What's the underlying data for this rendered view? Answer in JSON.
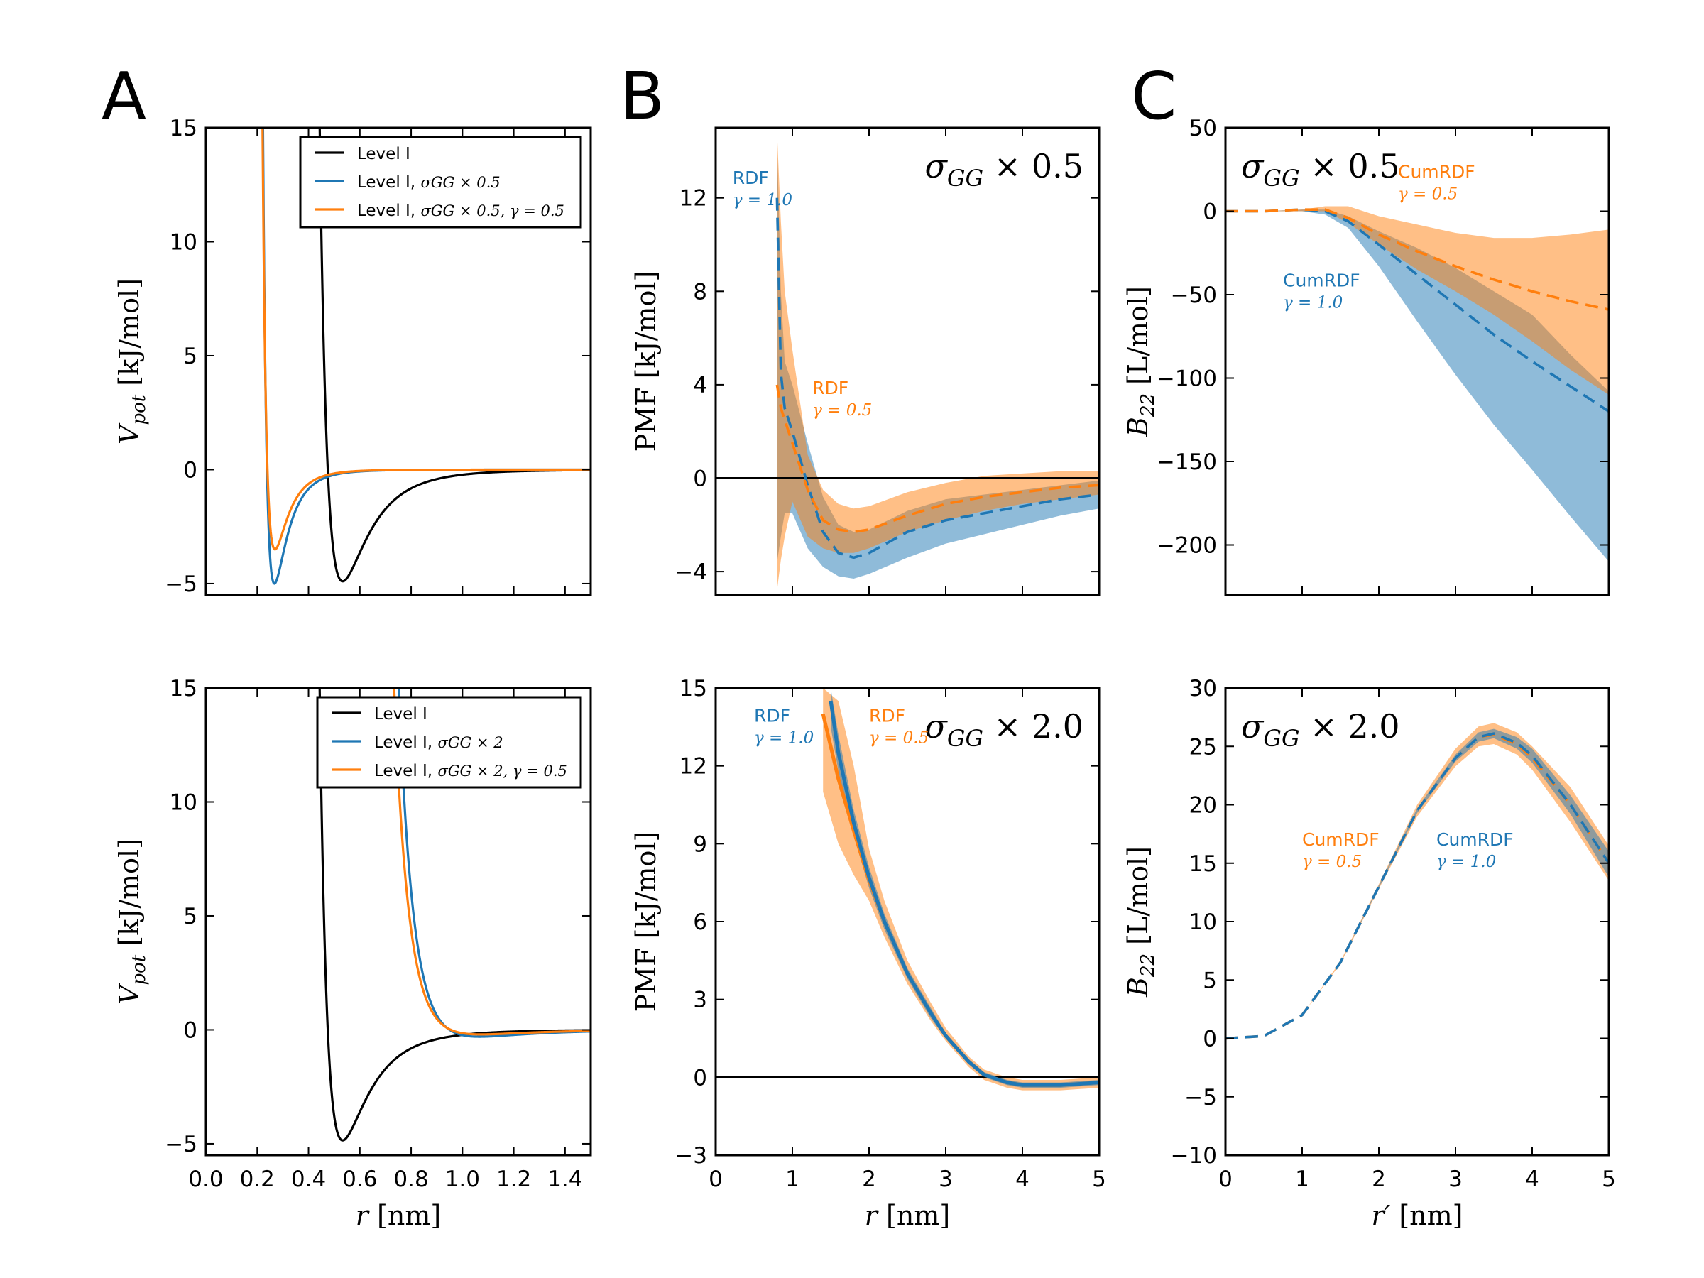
{
  "colors": {
    "blue": "#1f77b4",
    "orange": "#ff7f0e",
    "black": "#000000",
    "gray": "#7a8288",
    "blue_fill": "#7fb0dc",
    "orange_fill": "#ffbf86"
  },
  "panel_letters": [
    "A",
    "B",
    "C"
  ],
  "chart_data": [
    {
      "id": "A_top",
      "type": "line",
      "panel": "A",
      "xlabel": "",
      "ylabel_main": "V",
      "ylabel_sub": "pot",
      "ylabel_unit": " [kJ/mol]",
      "xlim": [
        0.0,
        1.5
      ],
      "ylim": [
        -5.5,
        15
      ],
      "xticks": [],
      "xtick_labels": [],
      "yticks": [
        -5,
        0,
        5,
        10,
        15
      ],
      "ytick_labels": [
        "−5",
        "0",
        "5",
        "10",
        "15"
      ],
      "legend": {
        "position": "top-right",
        "entries": [
          {
            "color": "black",
            "text": "Level I",
            "math": ""
          },
          {
            "color": "blue",
            "text": "Level I, ",
            "math": "σGG × 0.5"
          },
          {
            "color": "orange",
            "text": "Level I, ",
            "math": "σGG × 0.5, γ = 0.5"
          }
        ]
      },
      "series": [
        {
          "name": "Level I",
          "color": "black",
          "sigma": 0.475,
          "eps": 4.9
        },
        {
          "name": "Level I, σGG × 0.5",
          "color": "blue",
          "sigma": 0.238,
          "eps": 5.0
        },
        {
          "name": "Level I, σGG × 0.5, γ = 0.5",
          "color": "orange",
          "sigma": 0.24,
          "eps": 3.5
        }
      ]
    },
    {
      "id": "A_bottom",
      "type": "line",
      "panel": "A",
      "xlabel": "r [nm]",
      "ylabel_main": "V",
      "ylabel_sub": "pot",
      "ylabel_unit": " [kJ/mol]",
      "xlim": [
        0.0,
        1.5
      ],
      "ylim": [
        -5.5,
        15
      ],
      "xticks": [
        0.0,
        0.2,
        0.4,
        0.6,
        0.8,
        1.0,
        1.2,
        1.4
      ],
      "xtick_labels": [
        "0.0",
        "0.2",
        "0.4",
        "0.6",
        "0.8",
        "1.0",
        "1.2",
        "1.4"
      ],
      "yticks": [
        -5,
        0,
        5,
        10,
        15
      ],
      "ytick_labels": [
        "−5",
        "0",
        "5",
        "10",
        "15"
      ],
      "legend": {
        "position": "top-right",
        "entries": [
          {
            "color": "black",
            "text": "Level I",
            "math": ""
          },
          {
            "color": "blue",
            "text": "Level I, ",
            "math": "σGG × 2"
          },
          {
            "color": "orange",
            "text": "Level I, ",
            "math": "σGG × 2, γ = 0.5"
          }
        ]
      },
      "series": [
        {
          "name": "Level I",
          "color": "black",
          "sigma": 0.475,
          "eps": 4.85
        },
        {
          "name": "Level I, σGG × 2",
          "color": "blue",
          "sigma": 0.95,
          "eps": 0.3
        },
        {
          "name": "Level I, σGG × 2, γ = 0.5",
          "color": "orange",
          "sigma": 0.955,
          "eps": 0.2
        }
      ]
    },
    {
      "id": "B_top",
      "type": "area",
      "panel": "B",
      "xlabel": "",
      "ylabel": "PMF [kJ/mol]",
      "xlim": [
        0,
        5
      ],
      "ylim": [
        -5,
        15
      ],
      "xticks": [],
      "xtick_labels": [],
      "yticks": [
        -4,
        0,
        4,
        8,
        12
      ],
      "ytick_labels": [
        "−4",
        "0",
        "4",
        "8",
        "12"
      ],
      "corner_label": {
        "sym": "σ",
        "sub": "GG",
        "rest": " × 0.5"
      },
      "annotations": [
        {
          "text": "RDF",
          "sub": "γ = 1.0",
          "color": "blue",
          "x": 0.22,
          "y": 12.6
        },
        {
          "text": "RDF",
          "sub": "γ = 0.5",
          "color": "orange",
          "x": 1.26,
          "y": 3.6
        }
      ],
      "series": [
        {
          "name": "RDF γ = 1.0",
          "color": "blue",
          "x": [
            0.8,
            0.85,
            0.9,
            1.0,
            1.2,
            1.4,
            1.6,
            1.8,
            2.0,
            2.5,
            3.0,
            3.5,
            4.0,
            4.5,
            5.0
          ],
          "y": [
            12,
            4.5,
            3.0,
            2.0,
            -0.3,
            -2.3,
            -3.2,
            -3.4,
            -3.2,
            -2.3,
            -1.8,
            -1.5,
            -1.2,
            -0.9,
            -0.7
          ],
          "lo": [
            -3.6,
            -2.5,
            -1.5,
            -1.5,
            -3.0,
            -3.8,
            -4.2,
            -4.3,
            -4.1,
            -3.4,
            -2.8,
            -2.4,
            -2.0,
            -1.6,
            -1.3
          ],
          "hi": [
            14.5,
            8.0,
            5.0,
            4.0,
            1.5,
            -0.8,
            -2.0,
            -2.3,
            -2.2,
            -1.4,
            -0.9,
            -0.7,
            -0.5,
            -0.3,
            -0.1
          ]
        },
        {
          "name": "RDF γ = 0.5",
          "color": "orange",
          "x": [
            0.8,
            0.85,
            0.9,
            1.0,
            1.2,
            1.4,
            1.6,
            1.8,
            2.0,
            2.5,
            3.0,
            3.5,
            4.0,
            4.5,
            5.0
          ],
          "y": [
            4.0,
            3.0,
            2.5,
            1.5,
            -0.5,
            -1.8,
            -2.2,
            -2.3,
            -2.2,
            -1.6,
            -1.1,
            -0.8,
            -0.6,
            -0.4,
            -0.3
          ],
          "lo": [
            -4.8,
            -3.5,
            -2.5,
            -1.0,
            -2.5,
            -3.0,
            -3.2,
            -3.2,
            -3.0,
            -2.3,
            -1.8,
            -1.4,
            -1.1,
            -0.9,
            -0.7
          ],
          "hi": [
            14.8,
            11.0,
            8.0,
            5.5,
            1.0,
            -0.5,
            -1.1,
            -1.3,
            -1.2,
            -0.6,
            -0.2,
            0.1,
            0.2,
            0.3,
            0.3
          ]
        }
      ],
      "hline": 0
    },
    {
      "id": "B_bottom",
      "type": "area",
      "panel": "B",
      "xlabel": "r [nm]",
      "ylabel": "PMF [kJ/mol]",
      "xlim": [
        0,
        5
      ],
      "ylim": [
        -3,
        15
      ],
      "xticks": [
        0,
        1,
        2,
        3,
        4,
        5
      ],
      "xtick_labels": [
        "0",
        "1",
        "2",
        "3",
        "4",
        "5"
      ],
      "yticks": [
        -3,
        0,
        3,
        6,
        9,
        12,
        15
      ],
      "ytick_labels": [
        "−3",
        "0",
        "3",
        "6",
        "9",
        "12",
        "15"
      ],
      "corner_label": {
        "sym": "σ",
        "sub": "GG",
        "rest": " × 2.0"
      },
      "annotations": [
        {
          "text": "RDF",
          "sub": "γ = 1.0",
          "color": "blue",
          "x": 0.5,
          "y": 13.7
        },
        {
          "text": "RDF",
          "sub": "γ = 0.5",
          "color": "orange",
          "x": 2.0,
          "y": 13.7
        }
      ],
      "series": [
        {
          "name": "RDF γ = 0.5",
          "color": "orange",
          "x": [
            1.4,
            1.6,
            1.8,
            2.0,
            2.2,
            2.5,
            2.8,
            3.0,
            3.3,
            3.5,
            3.8,
            4.0,
            4.5,
            5.0
          ],
          "y": [
            14.0,
            11.5,
            9.5,
            7.6,
            6.0,
            4.0,
            2.5,
            1.6,
            0.6,
            0.1,
            -0.2,
            -0.3,
            -0.3,
            -0.2
          ],
          "lo": [
            11.0,
            9.0,
            7.8,
            6.8,
            5.4,
            3.6,
            2.2,
            1.4,
            0.4,
            -0.1,
            -0.4,
            -0.5,
            -0.5,
            -0.4
          ],
          "hi": [
            15.0,
            14.5,
            12.0,
            8.8,
            6.8,
            4.5,
            2.9,
            1.9,
            0.8,
            0.3,
            0.0,
            -0.1,
            -0.1,
            0.0
          ]
        },
        {
          "name": "RDF γ = 1.0",
          "color": "blue",
          "x": [
            1.5,
            1.6,
            1.8,
            2.0,
            2.2,
            2.5,
            2.8,
            3.0,
            3.3,
            3.5,
            3.8,
            4.0,
            4.5,
            5.0
          ],
          "y": [
            14.5,
            12.5,
            9.8,
            7.7,
            6.0,
            4.0,
            2.5,
            1.6,
            0.6,
            0.1,
            -0.2,
            -0.3,
            -0.3,
            -0.2
          ],
          "lo": [
            13.5,
            11.8,
            9.3,
            7.3,
            5.7,
            3.8,
            2.3,
            1.5,
            0.5,
            0.0,
            -0.3,
            -0.4,
            -0.4,
            -0.3
          ],
          "hi": [
            15.0,
            13.2,
            10.3,
            8.1,
            6.3,
            4.2,
            2.7,
            1.7,
            0.7,
            0.2,
            -0.1,
            -0.2,
            -0.2,
            -0.1
          ]
        }
      ],
      "hline": 0
    },
    {
      "id": "C_top",
      "type": "area",
      "panel": "C",
      "xlabel": "",
      "ylabel_main": "B",
      "ylabel_sub": "22",
      "ylabel_unit": " [L/mol]",
      "xlim": [
        0,
        5
      ],
      "ylim": [
        -230,
        50
      ],
      "xticks": [],
      "xtick_labels": [],
      "yticks": [
        -200,
        -150,
        -100,
        -50,
        0,
        50
      ],
      "ytick_labels": [
        "−200",
        "−150",
        "−100",
        "−50",
        "0",
        "50"
      ],
      "corner_label": {
        "sym": "σ",
        "sub": "GG",
        "rest": " × 0.5",
        "position": "top-left"
      },
      "annotations": [
        {
          "text": "CumRDF",
          "sub": "γ = 0.5",
          "color": "orange",
          "x": 2.25,
          "y": 20
        },
        {
          "text": "CumRDF",
          "sub": "γ = 1.0",
          "color": "blue",
          "x": 0.75,
          "y": -45
        }
      ],
      "series": [
        {
          "name": "CumRDF γ = 1.0",
          "color": "blue",
          "x": [
            0,
            0.5,
            1.0,
            1.3,
            1.6,
            2.0,
            2.5,
            3.0,
            3.5,
            4.0,
            4.5,
            5.0
          ],
          "y": [
            0,
            0,
            1,
            0,
            -6,
            -20,
            -38,
            -56,
            -74,
            -90,
            -105,
            -120
          ],
          "lo": [
            0,
            0,
            0,
            -2,
            -10,
            -33,
            -66,
            -98,
            -128,
            -155,
            -183,
            -210
          ],
          "hi": [
            0,
            0,
            1,
            1,
            -3,
            -12,
            -22,
            -34,
            -48,
            -62,
            -86,
            -108
          ]
        },
        {
          "name": "CumRDF γ = 0.5",
          "color": "orange",
          "x": [
            0,
            0.5,
            1.0,
            1.3,
            1.6,
            2.0,
            2.5,
            3.0,
            3.5,
            4.0,
            4.5,
            5.0
          ],
          "y": [
            0,
            0,
            1,
            1,
            -4,
            -14,
            -24,
            -33,
            -41,
            -48,
            -54,
            -59
          ],
          "lo": [
            0,
            0,
            0,
            0,
            -7,
            -20,
            -35,
            -48,
            -62,
            -78,
            -95,
            -110
          ],
          "hi": [
            0,
            0,
            1,
            3,
            3,
            -3,
            -8,
            -13,
            -16,
            -16,
            -14,
            -11
          ]
        }
      ]
    },
    {
      "id": "C_bottom",
      "type": "area",
      "panel": "C",
      "xlabel": "r′ [nm]",
      "ylabel_main": "B",
      "ylabel_sub": "22",
      "ylabel_unit": " [L/mol]",
      "xlim": [
        0,
        5
      ],
      "ylim": [
        -10,
        30
      ],
      "xticks": [
        0,
        1,
        2,
        3,
        4,
        5
      ],
      "xtick_labels": [
        "0",
        "1",
        "2",
        "3",
        "4",
        "5"
      ],
      "yticks": [
        -10,
        -5,
        0,
        5,
        10,
        15,
        20,
        25,
        30
      ],
      "ytick_labels": [
        "−10",
        "−5",
        "0",
        "5",
        "10",
        "15",
        "20",
        "25",
        "30"
      ],
      "corner_label": {
        "sym": "σ",
        "sub": "GG",
        "rest": " × 2.0",
        "position": "top-left"
      },
      "annotations": [
        {
          "text": "CumRDF",
          "sub": "γ = 0.5",
          "color": "orange",
          "x": 1.0,
          "y": 16.5
        },
        {
          "text": "CumRDF",
          "sub": "γ = 1.0",
          "color": "blue",
          "x": 2.75,
          "y": 16.5
        }
      ],
      "series": [
        {
          "name": "CumRDF γ = 0.5",
          "color": "orange",
          "x": [
            0,
            0.5,
            1.0,
            1.5,
            2.0,
            2.5,
            3.0,
            3.3,
            3.5,
            3.8,
            4.0,
            4.5,
            5.0
          ],
          "y": [
            0,
            0.2,
            2,
            6.5,
            13,
            19.5,
            24,
            25.8,
            26,
            25.2,
            24,
            20,
            15
          ],
          "lo": [
            0,
            0.2,
            2,
            6.4,
            12.8,
            19,
            23.3,
            25,
            25.2,
            24.3,
            23,
            18.5,
            13.5
          ],
          "hi": [
            0,
            0.2,
            2,
            6.6,
            13.2,
            20,
            24.8,
            26.7,
            27,
            26.2,
            25,
            21.5,
            16.5
          ]
        },
        {
          "name": "CumRDF γ = 1.0",
          "color": "blue",
          "x": [
            0,
            0.5,
            1.0,
            1.5,
            2.0,
            2.5,
            3.0,
            3.3,
            3.5,
            3.8,
            4.0,
            4.5,
            5.0
          ],
          "y": [
            0,
            0.2,
            2,
            6.5,
            13,
            19.5,
            24,
            25.8,
            26.1,
            25.3,
            24.2,
            20,
            15
          ],
          "lo": [
            0,
            0.2,
            2,
            6.5,
            12.9,
            19.3,
            23.7,
            25.4,
            25.7,
            24.8,
            23.6,
            19.2,
            13.8
          ],
          "hi": [
            0,
            0.2,
            2,
            6.5,
            13.1,
            19.7,
            24.3,
            26.2,
            26.5,
            25.8,
            24.8,
            20.8,
            16
          ]
        }
      ]
    }
  ]
}
